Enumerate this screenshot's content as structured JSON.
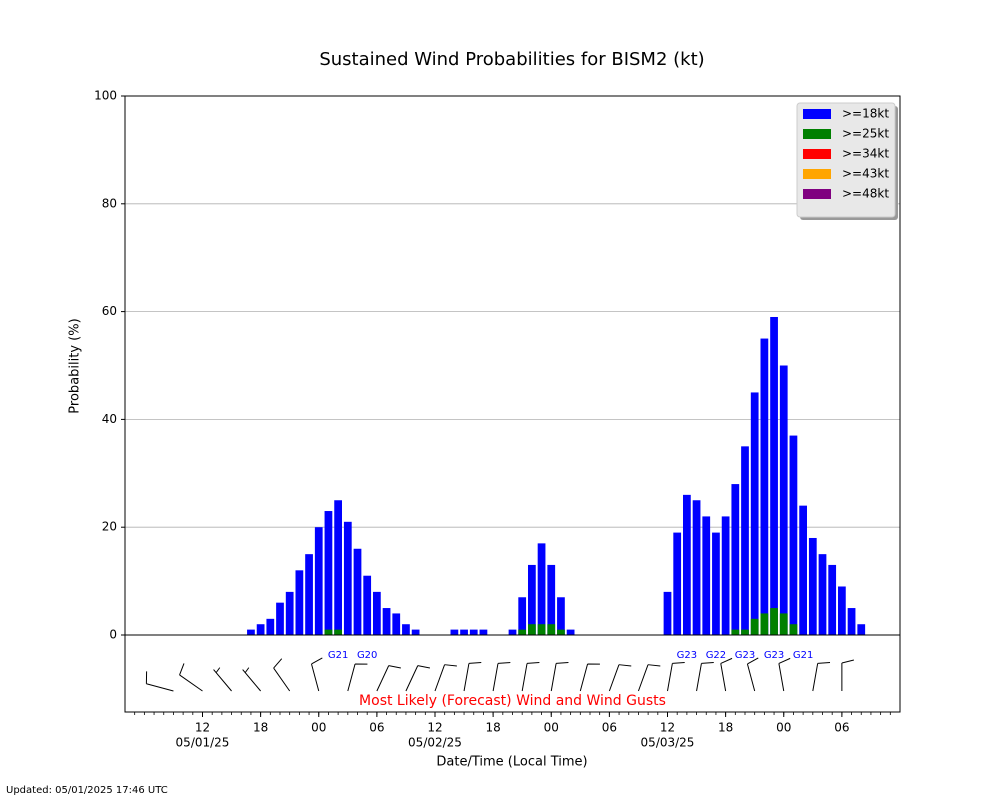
{
  "chart_data": {
    "type": "bar",
    "title": "Sustained Wind Probabilities for BISM2 (kt)",
    "ylabel": "Probability (%)",
    "xlabel": "Date/Time (Local Time)",
    "annotation": "Most Likely (Forecast) Wind and Wind Gusts",
    "footer": "Updated: 05/01/2025 17:46 UTC",
    "xlim": [
      4,
      84
    ],
    "ylim": [
      0,
      100
    ],
    "yticks": [
      0,
      20,
      40,
      60,
      80,
      100
    ],
    "grid": true,
    "legend": "upper right",
    "xticks": [
      {
        "value": 12,
        "label": "12",
        "date": "05/01/25"
      },
      {
        "value": 18,
        "label": "18"
      },
      {
        "value": 24,
        "label": "00"
      },
      {
        "value": 30,
        "label": "06"
      },
      {
        "value": 36,
        "label": "12",
        "date": "05/02/25"
      },
      {
        "value": 42,
        "label": "18"
      },
      {
        "value": 48,
        "label": "00"
      },
      {
        "value": 54,
        "label": "06"
      },
      {
        "value": 60,
        "label": "12",
        "date": "05/03/25"
      },
      {
        "value": 66,
        "label": "18"
      },
      {
        "value": 72,
        "label": "00"
      },
      {
        "value": 78,
        "label": "06"
      }
    ],
    "x": [
      17,
      18,
      19,
      20,
      21,
      22,
      23,
      24,
      25,
      26,
      27,
      28,
      29,
      30,
      31,
      32,
      33,
      34,
      35,
      36,
      37,
      38,
      39,
      40,
      41,
      42,
      43,
      44,
      45,
      46,
      47,
      48,
      49,
      50,
      51,
      52,
      53,
      54,
      55,
      56,
      57,
      58,
      59,
      60,
      61,
      62,
      63,
      64,
      65,
      66,
      67,
      68,
      69,
      70,
      71,
      72,
      73,
      74,
      75,
      76,
      77,
      78,
      79,
      80
    ],
    "series": [
      {
        "name": ">=18kt",
        "color": "#0000ff",
        "values": [
          1,
          2,
          3,
          6,
          8,
          12,
          15,
          20,
          23,
          25,
          21,
          16,
          11,
          8,
          5,
          4,
          2,
          1,
          0,
          0,
          0,
          1,
          1,
          1,
          1,
          0,
          0,
          1,
          7,
          13,
          17,
          13,
          7,
          1,
          0,
          0,
          0,
          0,
          0,
          0,
          0,
          0,
          0,
          8,
          19,
          26,
          25,
          22,
          19,
          22,
          28,
          35,
          45,
          55,
          59,
          50,
          37,
          24,
          18,
          15,
          13,
          9,
          5,
          2
        ]
      },
      {
        "name": ">=25kt",
        "color": "#008000",
        "values": [
          0,
          0,
          0,
          0,
          0,
          0,
          0,
          0,
          1,
          1,
          0,
          0,
          0,
          0,
          0,
          0,
          0,
          0,
          0,
          0,
          0,
          0,
          0,
          0,
          0,
          0,
          0,
          0,
          1,
          2,
          2,
          2,
          1,
          0,
          0,
          0,
          0,
          0,
          0,
          0,
          0,
          0,
          0,
          0,
          0,
          0,
          0,
          0,
          0,
          0,
          1,
          1,
          3,
          4,
          5,
          4,
          2,
          0,
          0,
          0,
          0,
          0,
          0,
          0
        ]
      },
      {
        "name": ">=34kt",
        "color": "#ff0000",
        "values": [
          0,
          0,
          0,
          0,
          0,
          0,
          0,
          0,
          0,
          0,
          0,
          0,
          0,
          0,
          0,
          0,
          0,
          0,
          0,
          0,
          0,
          0,
          0,
          0,
          0,
          0,
          0,
          0,
          0,
          0,
          0,
          0,
          0,
          0,
          0,
          0,
          0,
          0,
          0,
          0,
          0,
          0,
          0,
          0,
          0,
          0,
          0,
          0,
          0,
          0,
          0,
          0,
          0,
          0,
          0,
          0,
          0,
          0,
          0,
          0,
          0,
          0,
          0,
          0
        ]
      },
      {
        "name": ">=43kt",
        "color": "#ffa500",
        "values": [
          0,
          0,
          0,
          0,
          0,
          0,
          0,
          0,
          0,
          0,
          0,
          0,
          0,
          0,
          0,
          0,
          0,
          0,
          0,
          0,
          0,
          0,
          0,
          0,
          0,
          0,
          0,
          0,
          0,
          0,
          0,
          0,
          0,
          0,
          0,
          0,
          0,
          0,
          0,
          0,
          0,
          0,
          0,
          0,
          0,
          0,
          0,
          0,
          0,
          0,
          0,
          0,
          0,
          0,
          0,
          0,
          0,
          0,
          0,
          0,
          0,
          0,
          0,
          0
        ]
      },
      {
        "name": ">=48kt",
        "color": "#800080",
        "values": [
          0,
          0,
          0,
          0,
          0,
          0,
          0,
          0,
          0,
          0,
          0,
          0,
          0,
          0,
          0,
          0,
          0,
          0,
          0,
          0,
          0,
          0,
          0,
          0,
          0,
          0,
          0,
          0,
          0,
          0,
          0,
          0,
          0,
          0,
          0,
          0,
          0,
          0,
          0,
          0,
          0,
          0,
          0,
          0,
          0,
          0,
          0,
          0,
          0,
          0,
          0,
          0,
          0,
          0,
          0,
          0,
          0,
          0,
          0,
          0,
          0,
          0,
          0,
          0
        ]
      }
    ],
    "gusts": [
      {
        "x": 26,
        "label": "G21"
      },
      {
        "x": 29,
        "label": "G20"
      },
      {
        "x": 62,
        "label": "G23"
      },
      {
        "x": 65,
        "label": "G22"
      },
      {
        "x": 68,
        "label": "G23"
      },
      {
        "x": 71,
        "label": "G23"
      },
      {
        "x": 74,
        "label": "G21"
      }
    ],
    "barbs": [
      {
        "x": 9,
        "direction": 285,
        "speed": 10
      },
      {
        "x": 12,
        "direction": 305,
        "speed": 10
      },
      {
        "x": 15,
        "direction": 320,
        "speed": 5
      },
      {
        "x": 18,
        "direction": 320,
        "speed": 5
      },
      {
        "x": 21,
        "direction": 325,
        "speed": 10
      },
      {
        "x": 24,
        "direction": 345,
        "speed": 10
      },
      {
        "x": 27,
        "direction": 15,
        "speed": 10
      },
      {
        "x": 30,
        "direction": 25,
        "speed": 10
      },
      {
        "x": 33,
        "direction": 25,
        "speed": 10
      },
      {
        "x": 36,
        "direction": 20,
        "speed": 10
      },
      {
        "x": 39,
        "direction": 10,
        "speed": 10
      },
      {
        "x": 42,
        "direction": 10,
        "speed": 10
      },
      {
        "x": 45,
        "direction": 10,
        "speed": 10
      },
      {
        "x": 48,
        "direction": 10,
        "speed": 10
      },
      {
        "x": 51,
        "direction": 15,
        "speed": 10
      },
      {
        "x": 54,
        "direction": 20,
        "speed": 10
      },
      {
        "x": 57,
        "direction": 20,
        "speed": 10
      },
      {
        "x": 60,
        "direction": 10,
        "speed": 10
      },
      {
        "x": 63,
        "direction": 10,
        "speed": 10
      },
      {
        "x": 66,
        "direction": 350,
        "speed": 10
      },
      {
        "x": 69,
        "direction": 345,
        "speed": 10
      },
      {
        "x": 72,
        "direction": 350,
        "speed": 10
      },
      {
        "x": 75,
        "direction": 10,
        "speed": 10
      },
      {
        "x": 78,
        "direction": 360,
        "speed": 10
      }
    ]
  }
}
